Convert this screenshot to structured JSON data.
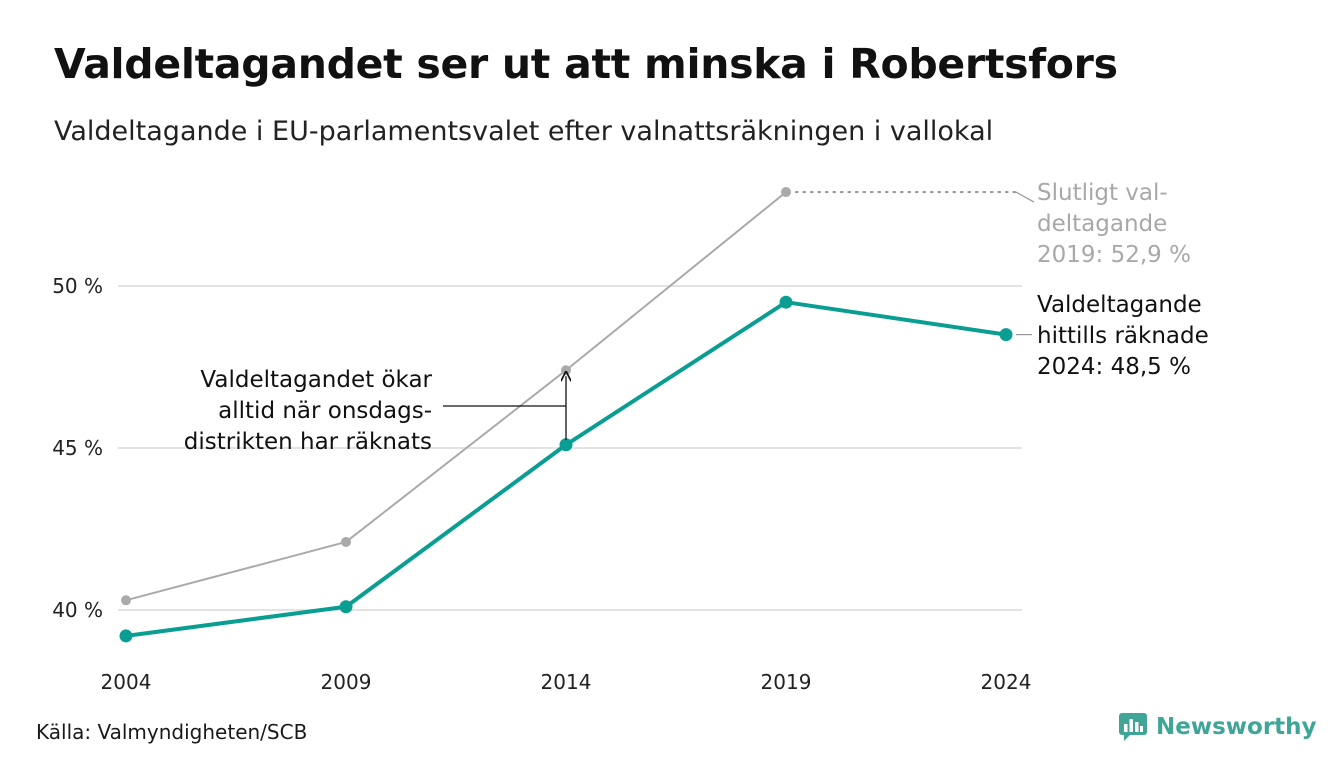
{
  "title": "Valdeltagandet ser ut att minska i Robertsfors",
  "subtitle": "Valdeltagande i EU-parlamentsvalet efter valnattsräkningen i vallokal",
  "source": "Källa: Valmyndigheten/SCB",
  "brand": "Newsworthy",
  "colors": {
    "main": "#0a9e93",
    "final": "#aaaaaa",
    "grid": "#e3e3e3",
    "brand": "#3ea597"
  },
  "chart_data": {
    "type": "line",
    "x": [
      "2004",
      "2009",
      "2014",
      "2019",
      "2024"
    ],
    "ylim": [
      38.0,
      53.5
    ],
    "yticks": [
      40,
      45,
      50
    ],
    "ytick_labels": [
      "40 %",
      "45 %",
      "50 %"
    ],
    "grid": true,
    "series": [
      {
        "key": "final",
        "values": [
          40.3,
          42.1,
          47.4,
          52.9,
          null
        ]
      },
      {
        "key": "election_night",
        "values": [
          39.2,
          40.1,
          45.1,
          49.5,
          48.5
        ]
      }
    ],
    "annotations": {
      "final": [
        "Slutligt val-",
        "deltagande",
        "2019: 52,9 %"
      ],
      "current": [
        "Valdeltagande",
        "hittills räknade",
        "2024: 48,5 %"
      ],
      "note": [
        "Valdeltagandet ökar",
        "alltid när onsdags-",
        "distrikten har räknats"
      ]
    }
  }
}
